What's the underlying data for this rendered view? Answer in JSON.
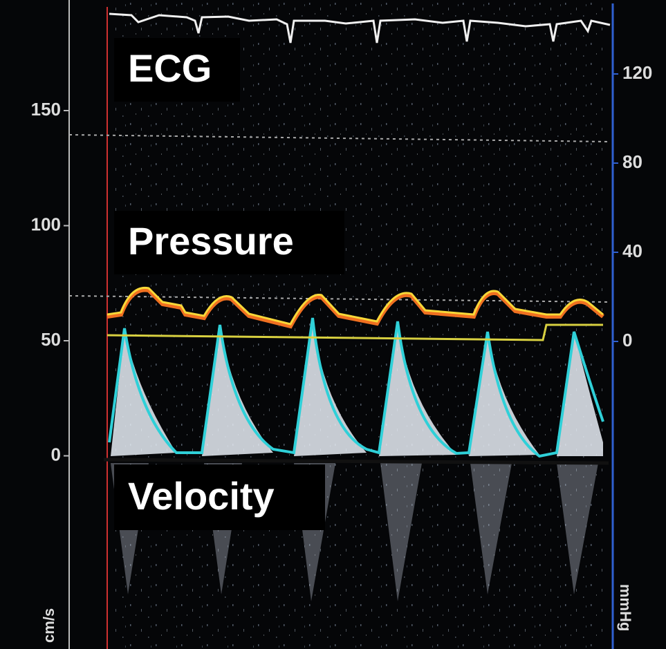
{
  "labels": {
    "ecg": "ECG",
    "pressure": "Pressure",
    "velocity": "Velocity"
  },
  "left_axis": {
    "ticks": [
      150,
      100,
      50,
      0
    ],
    "unit": "cm/s"
  },
  "right_axis": {
    "ticks": [
      120,
      80,
      40,
      0
    ],
    "unit": "mmHg"
  }
}
